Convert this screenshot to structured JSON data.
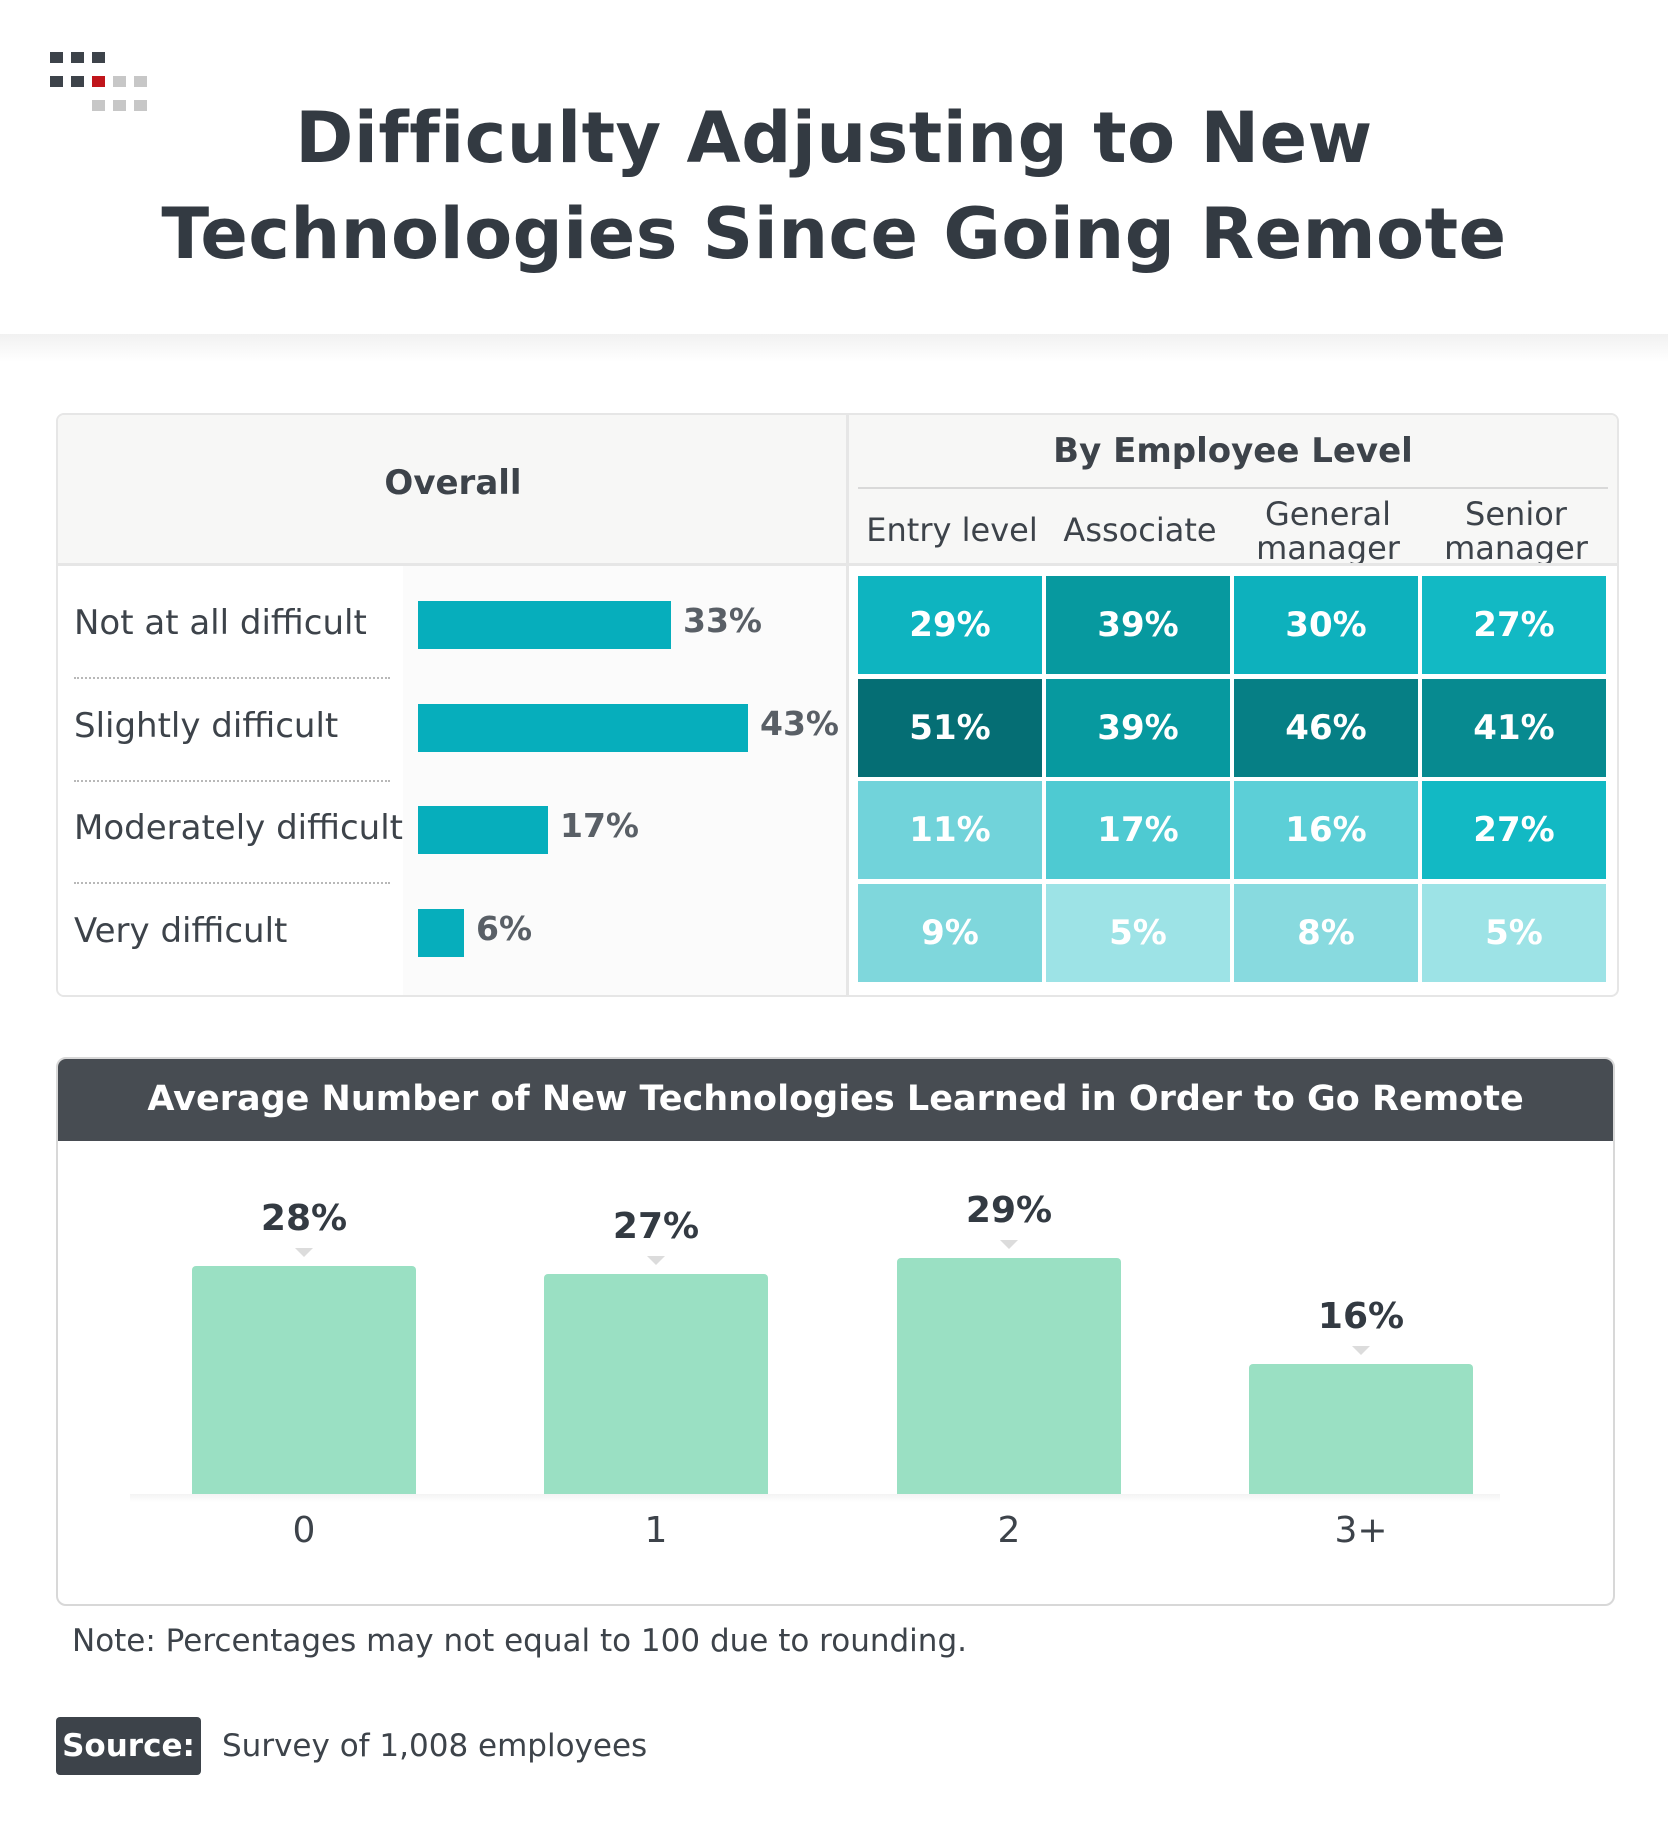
{
  "title_line1": "Difficulty Adjusting to New",
  "title_line2": "Technologies Since Going Remote",
  "colors": {
    "title": "#333a42",
    "overall_bar": "#06aebc",
    "bottom_bar": "#9ae0c3",
    "header_bar": "#474c52",
    "logo_dark": "#3d434a",
    "logo_red": "#c0151b",
    "logo_gray": "#c7c7c7"
  },
  "table": {
    "overall_header": "Overall",
    "level_header": "By Employee Level",
    "columns": [
      "Entry level",
      "Associate",
      "General\nmanager",
      "Senior\nmanager"
    ]
  },
  "chart_data": [
    {
      "type": "bar",
      "orientation": "horizontal",
      "title": "Overall",
      "categories": [
        "Not at all difficult",
        "Slightly difficult",
        "Moderately difficult",
        "Very difficult"
      ],
      "values": [
        33,
        43,
        17,
        6
      ],
      "value_labels": [
        "33%",
        "43%",
        "17%",
        "6%"
      ]
    },
    {
      "type": "heatmap",
      "title": "By Employee Level",
      "rows": [
        "Not at all difficult",
        "Slightly difficult",
        "Moderately difficult",
        "Very difficult"
      ],
      "columns": [
        "Entry level",
        "Associate",
        "General manager",
        "Senior manager"
      ],
      "values": [
        [
          29,
          39,
          30,
          27
        ],
        [
          51,
          39,
          46,
          41
        ],
        [
          11,
          17,
          16,
          27
        ],
        [
          9,
          5,
          8,
          5
        ]
      ],
      "value_labels": [
        [
          "29%",
          "39%",
          "30%",
          "27%"
        ],
        [
          "51%",
          "39%",
          "46%",
          "41%"
        ],
        [
          "11%",
          "17%",
          "16%",
          "27%"
        ],
        [
          "9%",
          "5%",
          "8%",
          "5%"
        ]
      ],
      "cell_colors": [
        [
          "#0eb4c0",
          "#07999f",
          "#0db1bd",
          "#12b9c4"
        ],
        [
          "#056e74",
          "#07999f",
          "#067f85",
          "#078a90"
        ],
        [
          "#71d3da",
          "#4ecad2",
          "#5ccfd7",
          "#12b9c4"
        ],
        [
          "#7fd7dc",
          "#9de3e6",
          "#88dadf",
          "#9de3e6"
        ]
      ]
    },
    {
      "type": "bar",
      "title": "Average Number of New Technologies Learned in Order to Go Remote",
      "categories": [
        "0",
        "1",
        "2",
        "3+"
      ],
      "values": [
        28,
        27,
        29,
        16
      ],
      "value_labels": [
        "28%",
        "27%",
        "29%",
        "16%"
      ]
    }
  ],
  "note": "Note: Percentages may not equal to 100 due to rounding.",
  "source_label": "Source:",
  "source_text": "Survey of 1,008 employees"
}
